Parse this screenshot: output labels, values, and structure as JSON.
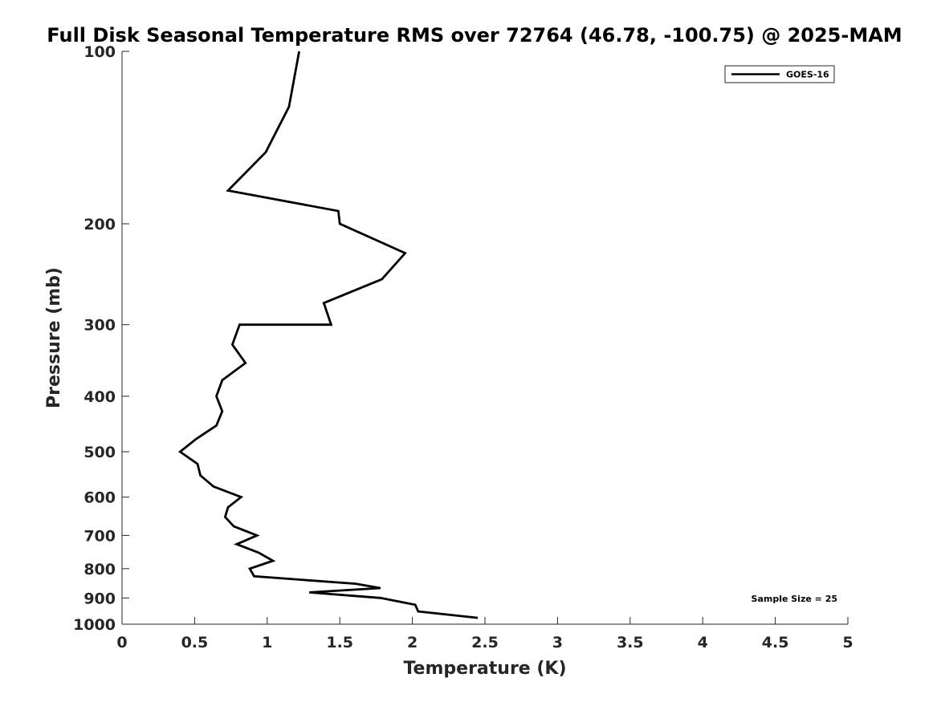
{
  "chart_data": {
    "type": "line",
    "title": "Full Disk Seasonal Temperature RMS over 72764 (46.78, -100.75) @ 2025-MAM",
    "xlabel": "Temperature (K)",
    "ylabel": "Pressure (mb)",
    "xlim": [
      0,
      5
    ],
    "ylim": [
      100,
      1000
    ],
    "y_scale": "log",
    "y_reversed": true,
    "grid": false,
    "legend_position": "top-right",
    "x_tick_labels": [
      "0",
      "0.5",
      "1",
      "1.5",
      "2",
      "2.5",
      "3",
      "3.5",
      "4",
      "4.5",
      "5"
    ],
    "x_ticks": [
      0,
      0.5,
      1,
      1.5,
      2,
      2.5,
      3,
      3.5,
      4,
      4.5,
      5
    ],
    "y_tick_labels": [
      "100",
      "200",
      "300",
      "400",
      "500",
      "600",
      "700",
      "800",
      "900",
      "1000"
    ],
    "y_ticks": [
      100,
      200,
      300,
      400,
      500,
      600,
      700,
      800,
      900,
      1000
    ],
    "series": [
      {
        "name": "GOES-16",
        "color": "#000000",
        "points": [
          {
            "x": 1.22,
            "y": 100
          },
          {
            "x": 1.15,
            "y": 125
          },
          {
            "x": 0.99,
            "y": 150
          },
          {
            "x": 0.73,
            "y": 175
          },
          {
            "x": 1.49,
            "y": 190
          },
          {
            "x": 1.5,
            "y": 200
          },
          {
            "x": 1.95,
            "y": 225
          },
          {
            "x": 1.79,
            "y": 250
          },
          {
            "x": 1.39,
            "y": 275
          },
          {
            "x": 1.44,
            "y": 300
          },
          {
            "x": 0.81,
            "y": 300
          },
          {
            "x": 0.76,
            "y": 325
          },
          {
            "x": 0.85,
            "y": 350
          },
          {
            "x": 0.69,
            "y": 375
          },
          {
            "x": 0.65,
            "y": 400
          },
          {
            "x": 0.69,
            "y": 425
          },
          {
            "x": 0.65,
            "y": 450
          },
          {
            "x": 0.51,
            "y": 475
          },
          {
            "x": 0.4,
            "y": 500
          },
          {
            "x": 0.52,
            "y": 525
          },
          {
            "x": 0.54,
            "y": 550
          },
          {
            "x": 0.63,
            "y": 575
          },
          {
            "x": 0.82,
            "y": 600
          },
          {
            "x": 0.73,
            "y": 625
          },
          {
            "x": 0.71,
            "y": 650
          },
          {
            "x": 0.77,
            "y": 675
          },
          {
            "x": 0.93,
            "y": 700
          },
          {
            "x": 0.79,
            "y": 725
          },
          {
            "x": 0.94,
            "y": 750
          },
          {
            "x": 1.04,
            "y": 775
          },
          {
            "x": 0.88,
            "y": 800
          },
          {
            "x": 0.91,
            "y": 825
          },
          {
            "x": 1.61,
            "y": 850
          },
          {
            "x": 1.78,
            "y": 865
          },
          {
            "x": 1.29,
            "y": 880
          },
          {
            "x": 1.78,
            "y": 900
          },
          {
            "x": 2.02,
            "y": 925
          },
          {
            "x": 2.04,
            "y": 950
          },
          {
            "x": 2.45,
            "y": 975
          }
        ]
      }
    ],
    "annotation": "Sample Size = 25"
  }
}
